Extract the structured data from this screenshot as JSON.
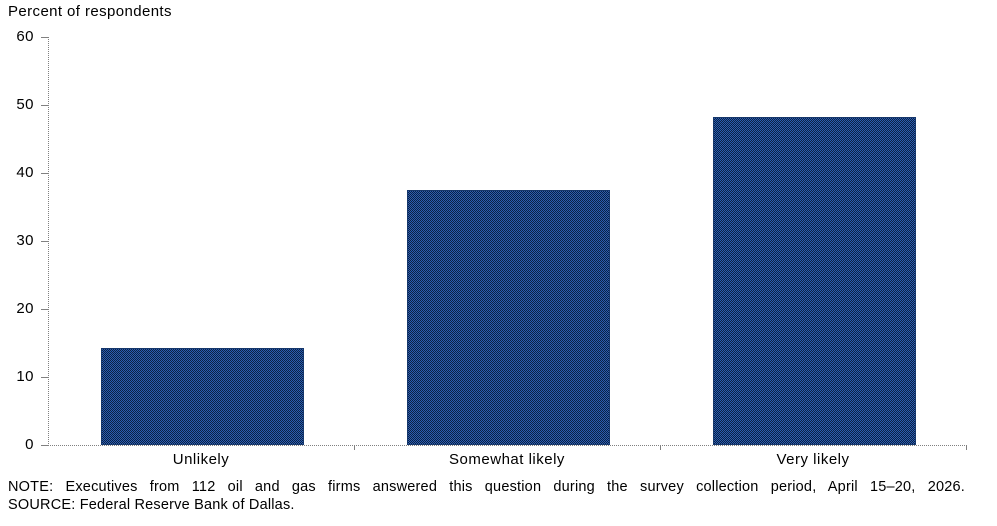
{
  "chart_data": {
    "type": "bar",
    "title": "Percent of respondents",
    "categories": [
      "Unlikely",
      "Somewhat likely",
      "Very likely"
    ],
    "values": [
      14.3,
      37.5,
      48.2
    ],
    "ylabel": "Percent of respondents",
    "xlabel": "",
    "ylim": [
      0,
      60
    ],
    "yticks": [
      0,
      10,
      20,
      30,
      40,
      50,
      60
    ],
    "grid": false,
    "legend_position": "none",
    "colors": {
      "bar_fill_light": "#2b5cb0",
      "bar_fill_dark": "#0a2144",
      "bar_edge": "#16376b",
      "axis": "#808080",
      "text": "#000000"
    }
  },
  "footer": {
    "note": "NOTE: Executives from 112 oil and gas firms answered this question during the survey collection period, April 15–20, 2026.",
    "source": "SOURCE: Federal Reserve Bank of Dallas."
  }
}
